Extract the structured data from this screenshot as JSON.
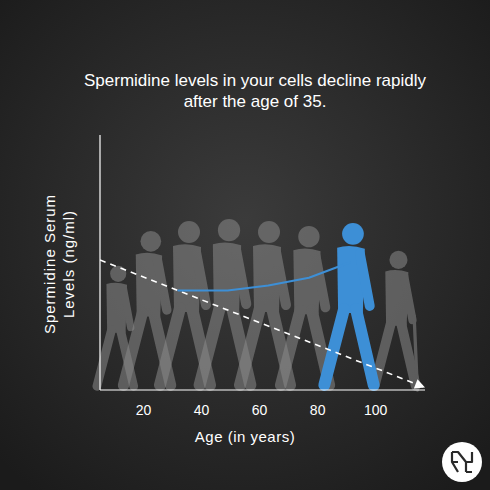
{
  "chart_data": {
    "type": "line",
    "title": "Spermidine levels in your cells decline rapidly after the age of 35.",
    "x_label": "Age (in years)",
    "y_label": "Spermidine Serum Levels (ng/ml)",
    "xlim": [
      5,
      117
    ],
    "xticks": [
      20,
      40,
      60,
      80,
      100
    ],
    "ylim": [
      0,
      100
    ],
    "yticks": [],
    "tick_labels": "x",
    "grid": false,
    "series": [
      {
        "color": "#ffffff",
        "line_style": "dashed",
        "marker": "arrow",
        "x": [
          5,
          117
        ],
        "values": [
          51,
          1
        ]
      },
      {
        "color": "#3d8fd6",
        "line_style": "solid",
        "marker": "none",
        "x": [
          32,
          49,
          63,
          77,
          91
        ],
        "values": [
          39,
          39,
          41,
          44,
          50
        ]
      }
    ]
  }
}
